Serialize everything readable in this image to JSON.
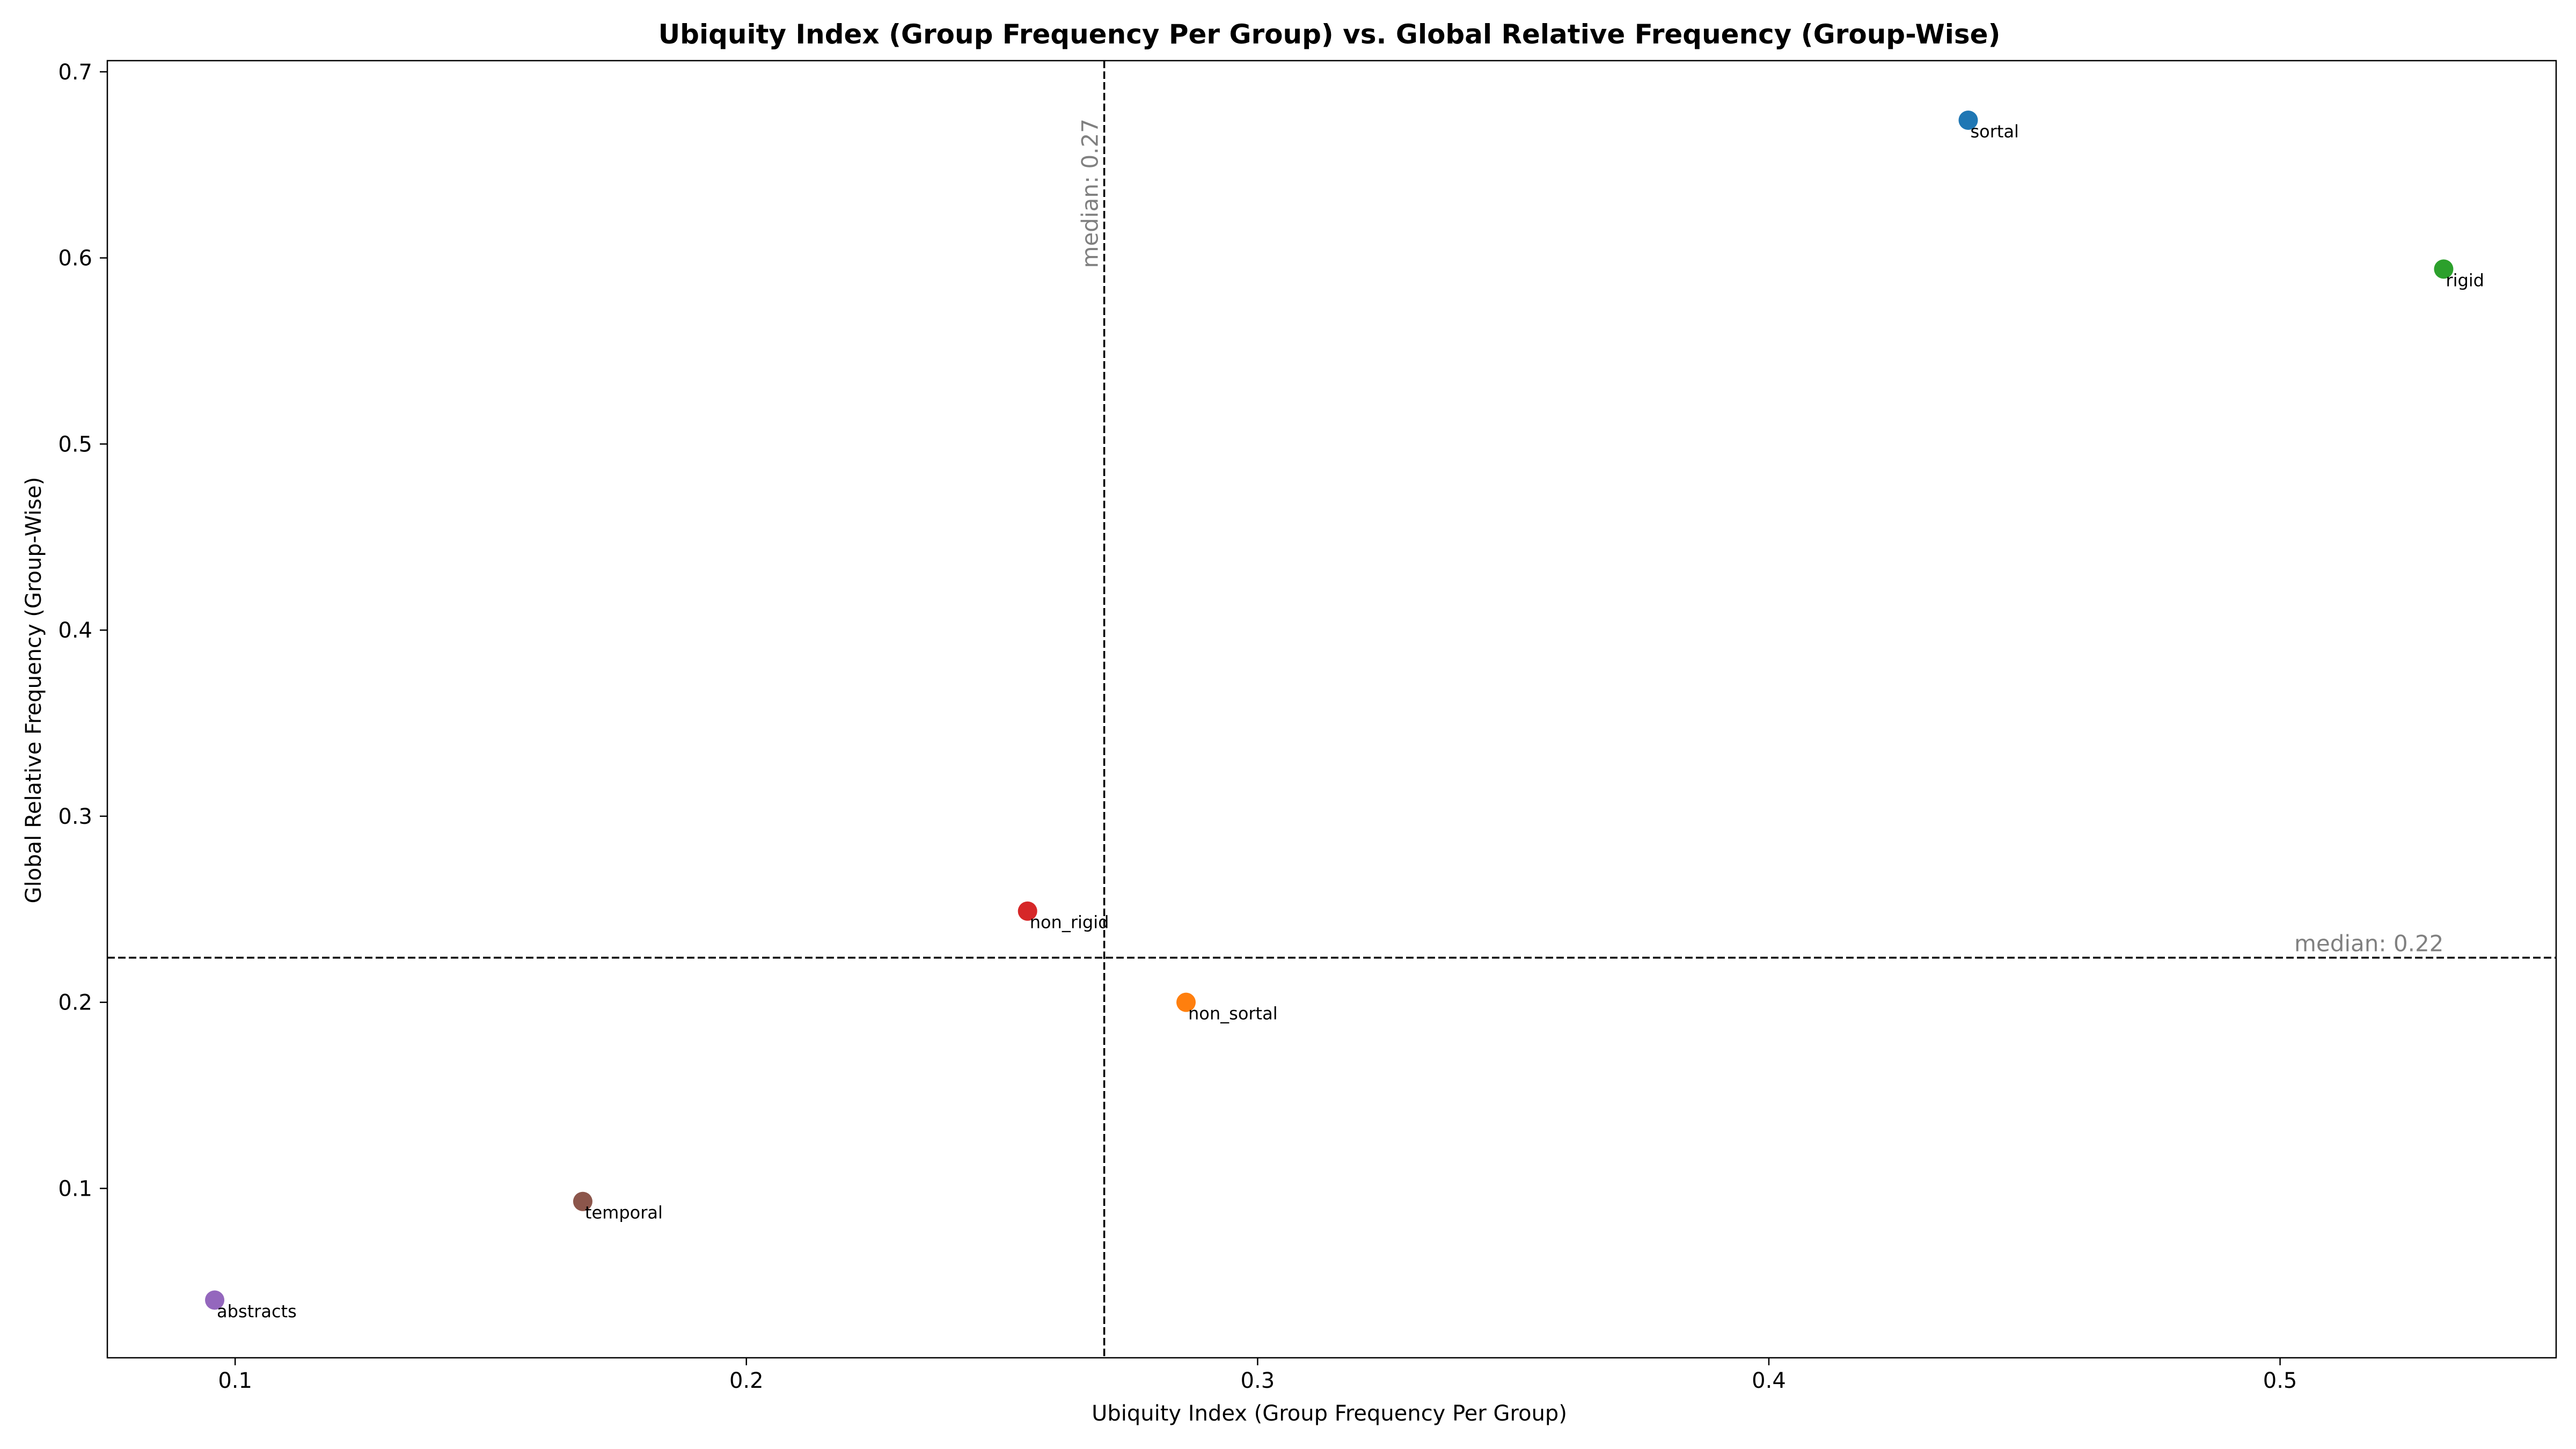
{
  "chart_data": {
    "type": "scatter",
    "title": "Ubiquity Index (Group Frequency Per Group) vs. Global Relative Frequency (Group-Wise)",
    "xlabel": "Ubiquity Index (Group Frequency Per Group)",
    "ylabel": "Global Relative Frequency (Group-Wise)",
    "xlim": [
      0.075,
      0.554
    ],
    "ylim": [
      0.009,
      0.706
    ],
    "xticks": [
      0.1,
      0.2,
      0.3,
      0.4,
      0.5
    ],
    "xtick_labels": [
      "0.1",
      "0.2",
      "0.3",
      "0.4",
      "0.5"
    ],
    "yticks": [
      0.1,
      0.2,
      0.3,
      0.4,
      0.5,
      0.6,
      0.7
    ],
    "ytick_labels": [
      "0.1",
      "0.2",
      "0.3",
      "0.4",
      "0.5",
      "0.6",
      "0.7"
    ],
    "grid": false,
    "points": [
      {
        "label": "sortal",
        "x": 0.439,
        "y": 0.674,
        "color": "#1f77b4"
      },
      {
        "label": "non_sortal",
        "x": 0.286,
        "y": 0.2,
        "color": "#ff7f0e"
      },
      {
        "label": "rigid",
        "x": 0.532,
        "y": 0.594,
        "color": "#2ca02c"
      },
      {
        "label": "non_rigid",
        "x": 0.255,
        "y": 0.249,
        "color": "#d62728"
      },
      {
        "label": "abstracts",
        "x": 0.096,
        "y": 0.04,
        "color": "#9467bd"
      },
      {
        "label": "temporal",
        "x": 0.168,
        "y": 0.093,
        "color": "#8c564b"
      }
    ],
    "reference_lines": [
      {
        "orientation": "vertical",
        "value": 0.27,
        "label": "median: 0.27",
        "style": "dashed",
        "color": "#000000"
      },
      {
        "orientation": "horizontal",
        "value": 0.224,
        "label": "median: 0.22",
        "style": "dashed",
        "color": "#000000"
      }
    ]
  }
}
